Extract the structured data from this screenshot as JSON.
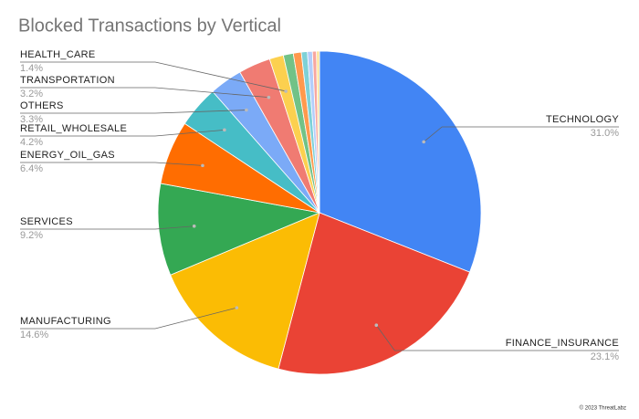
{
  "chart_data": {
    "type": "pie",
    "title": "Blocked Transactions by Vertical",
    "categories": [
      "TECHNOLOGY",
      "FINANCE_INSURANCE",
      "MANUFACTURING",
      "SERVICES",
      "ENERGY_OIL_GAS",
      "RETAIL_WHOLESALE",
      "OTHERS",
      "TRANSPORTATION",
      "HEALTH_CARE",
      null,
      null,
      null,
      null,
      null,
      null
    ],
    "values": [
      31.0,
      23.1,
      14.6,
      9.2,
      6.4,
      4.2,
      3.3,
      3.2,
      1.4,
      1.0,
      0.8,
      0.6,
      0.5,
      0.4,
      0.3
    ],
    "value_labels": [
      "31.0%",
      "23.1%",
      "14.6%",
      "9.2%",
      "6.4%",
      "4.2%",
      "3.3%",
      "3.2%",
      "1.4%",
      null,
      null,
      null,
      null,
      null,
      null
    ],
    "colors": [
      "#4285f4",
      "#ea4335",
      "#fbbc04",
      "#34a853",
      "#ff6d01",
      "#46bdc6",
      "#7baaf7",
      "#f07b72",
      "#fcd04f",
      "#71c287",
      "#ff994d",
      "#7ed1d7",
      "#b3cefb",
      "#f7a7a0",
      "#fde49b"
    ],
    "footer": "© 2023 ThreatLabz"
  }
}
